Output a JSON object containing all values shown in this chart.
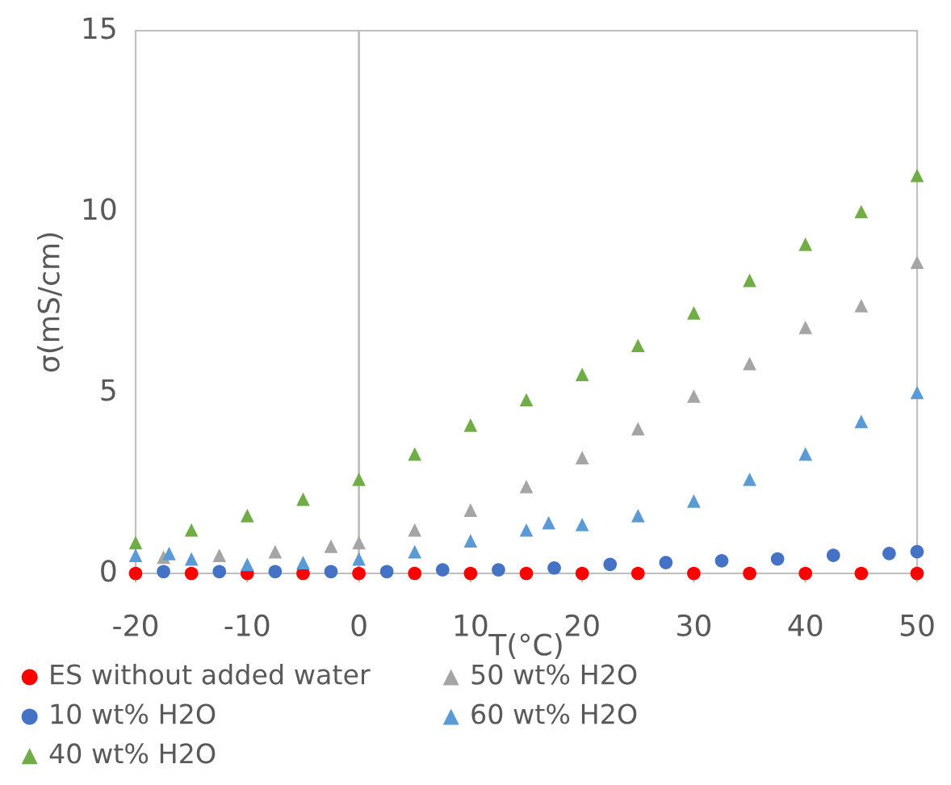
{
  "chart_data": {
    "type": "scatter",
    "xlabel": "T(°C)",
    "ylabel": "σ(mS/cm)",
    "xlim": [
      -20,
      50
    ],
    "ylim": [
      0,
      15
    ],
    "xticks": [
      -20,
      -10,
      0,
      10,
      20,
      30,
      40,
      50
    ],
    "yticks": [
      0,
      5,
      10,
      15
    ],
    "grid": false,
    "legend": "bottom",
    "ref_lines": [
      {
        "axis": "x",
        "value": 0,
        "color": "#bfbfbf"
      }
    ],
    "series": [
      {
        "name": "ES without added water",
        "color": "#ff0000",
        "marker": "circle",
        "x": [
          -20,
          -15,
          -10,
          -5,
          0,
          5,
          10,
          15,
          20,
          25,
          30,
          35,
          40,
          45,
          50
        ],
        "values": [
          0,
          0,
          0,
          0,
          0,
          0,
          0,
          0,
          0,
          0,
          0,
          0,
          0,
          0,
          0
        ]
      },
      {
        "name": "10 wt% H2O",
        "color": "#4472c4",
        "marker": "circle",
        "x": [
          -17.5,
          -12.5,
          -7.5,
          -2.5,
          2.5,
          7.5,
          12.5,
          17.5,
          22.5,
          27.5,
          32.5,
          37.5,
          42.5,
          47.5,
          50
        ],
        "values": [
          0.05,
          0.05,
          0.05,
          0.05,
          0.05,
          0.1,
          0.1,
          0.15,
          0.25,
          0.3,
          0.35,
          0.4,
          0.5,
          0.55,
          0.6
        ]
      },
      {
        "name": "40 wt% H2O",
        "color": "#70ad47",
        "marker": "triangle",
        "x": [
          -20,
          -15,
          -10,
          -5,
          0,
          5,
          10,
          15,
          20,
          25,
          30,
          35,
          40,
          45,
          50
        ],
        "values": [
          0.85,
          1.2,
          1.6,
          2.05,
          2.6,
          3.3,
          4.1,
          4.8,
          5.5,
          6.3,
          7.2,
          8.1,
          9.1,
          10.0,
          11.0
        ]
      },
      {
        "name": "50 wt% H2O",
        "color": "#a5a5a5",
        "marker": "triangle",
        "x": [
          -17.5,
          -12.5,
          -7.5,
          -2.5,
          0,
          5,
          10,
          15,
          20,
          25,
          30,
          35,
          40,
          45,
          50
        ],
        "values": [
          0.45,
          0.5,
          0.6,
          0.75,
          0.85,
          1.2,
          1.75,
          2.4,
          3.2,
          4.0,
          4.9,
          5.8,
          6.8,
          7.4,
          8.6
        ]
      },
      {
        "name": "60 wt% H2O",
        "color": "#5b9bd5",
        "marker": "triangle",
        "x": [
          -20,
          -17,
          -15,
          -10,
          -5,
          0,
          5,
          10,
          15,
          17,
          20,
          25,
          30,
          35,
          40,
          45,
          50
        ],
        "values": [
          0.5,
          0.55,
          0.4,
          0.25,
          0.3,
          0.4,
          0.6,
          0.9,
          1.2,
          1.4,
          1.35,
          1.6,
          2.0,
          2.6,
          3.3,
          4.2,
          5.0
        ]
      }
    ]
  }
}
